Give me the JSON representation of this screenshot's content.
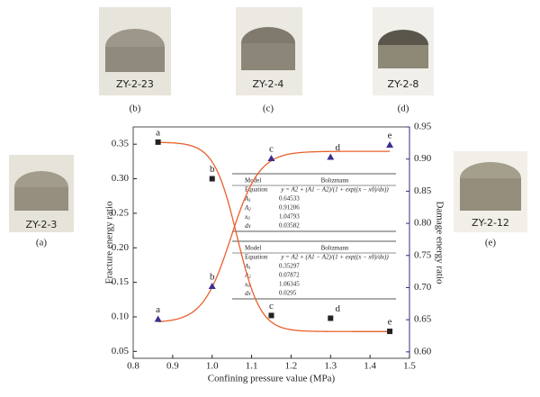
{
  "photos": [
    {
      "caption": "(b)",
      "tag": "ZY-2-23"
    },
    {
      "caption": "(c)",
      "tag": "ZY-2-4"
    },
    {
      "caption": "(d)",
      "tag": "ZY-2-8"
    },
    {
      "caption": "(a)",
      "tag": "ZY-2-3"
    },
    {
      "caption": "(e)",
      "tag": "ZY-2-12"
    }
  ],
  "chart_data": {
    "type": "scatter",
    "xlabel": "Confining pressure value (MPa)",
    "ylabel": "Fracture energy ratio",
    "y2label": "Damage energy ratio",
    "xlim": [
      0.8,
      1.5
    ],
    "xticks": [
      0.8,
      0.9,
      {
        "value": 1.0,
        "label": "1.0"
      },
      1.1,
      1.2,
      1.3,
      1.4,
      1.5
    ],
    "ylim": [
      0.04,
      0.375
    ],
    "yticks": [
      {
        "value": 0.05,
        "label": "0.05"
      },
      {
        "value": 0.1,
        "label": "0.10"
      },
      0.15,
      {
        "value": 0.2,
        "label": "0.20"
      },
      0.25,
      {
        "value": 0.3,
        "label": "0.30"
      },
      0.35
    ],
    "y2lim": [
      0.59,
      0.95
    ],
    "y2ticks": [
      {
        "value": 0.6,
        "label": "0.60"
      },
      0.65,
      {
        "value": 0.7,
        "label": "0.70"
      },
      0.75,
      {
        "value": 0.8,
        "label": "0.80"
      },
      0.85,
      {
        "value": 0.9,
        "label": "0.90"
      },
      0.95
    ],
    "axis_color": "#2e2e7a",
    "fit_color": "#e8602c",
    "x": [
      0.863,
      1.0,
      1.15,
      1.3,
      1.45
    ],
    "series": [
      {
        "name": "Fracture energy ratio",
        "marker": "square",
        "color": "#222222",
        "values": [
          0.353,
          0.3,
          0.102,
          0.098,
          0.079
        ],
        "point_labels": [
          "a",
          "b",
          "c",
          "d",
          "e"
        ],
        "fit": {
          "model_label": "Model",
          "model": "Boltzmann",
          "equation_label": "Equation",
          "equation": "y = A2 + (A1 − A2)/(1 + exp((x − x0)/dx))",
          "params": [
            {
              "name": "A",
              "sub": "1",
              "value": 0.35297
            },
            {
              "name": "A",
              "sub": "2",
              "value": 0.07872
            },
            {
              "name": "x",
              "sub": "0",
              "value": 1.06345
            },
            {
              "name": "dx",
              "sub": "",
              "value": 0.0295
            }
          ]
        }
      },
      {
        "name": "Damage energy ratio",
        "marker": "triangle",
        "color": "#3a2f8f",
        "axis": "y2",
        "values": [
          0.651,
          0.702,
          0.901,
          0.903,
          0.922
        ],
        "point_labels": [
          "a",
          "b",
          "c",
          "d",
          "e"
        ],
        "fit": {
          "model_label": "Model",
          "model": "Boltzmann",
          "equation_label": "Equation",
          "equation": "y = A2 + (A1 − A2)/(1 + exp((x − x0)/dx))",
          "params": [
            {
              "name": "A",
              "sub": "1",
              "value": 0.64533
            },
            {
              "name": "A",
              "sub": "2",
              "value": 0.91206
            },
            {
              "name": "x",
              "sub": "0",
              "value": 1.04793
            },
            {
              "name": "dx",
              "sub": "",
              "value": 0.03582
            }
          ]
        }
      }
    ]
  }
}
